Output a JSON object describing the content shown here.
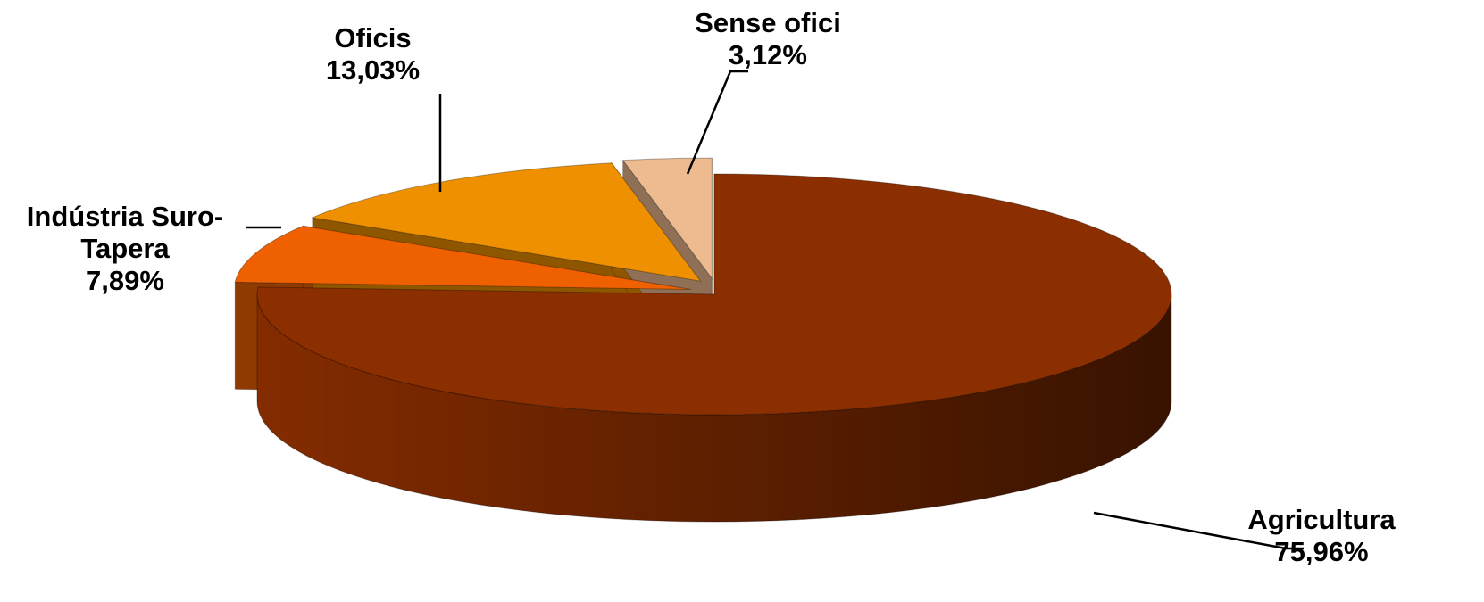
{
  "chart_data": {
    "type": "pie3d",
    "categories": [
      "Agricultura",
      "Indústria Suro-Tapera",
      "Oficis",
      "Sense ofici"
    ],
    "values": [
      75.96,
      7.89,
      13.03,
      3.12
    ],
    "value_labels": [
      "75,96%",
      "7,89%",
      "13,03%",
      "3,12%"
    ],
    "colors": [
      "#8b2e00",
      "#ee6000",
      "#ee9000",
      "#eebb90"
    ]
  }
}
